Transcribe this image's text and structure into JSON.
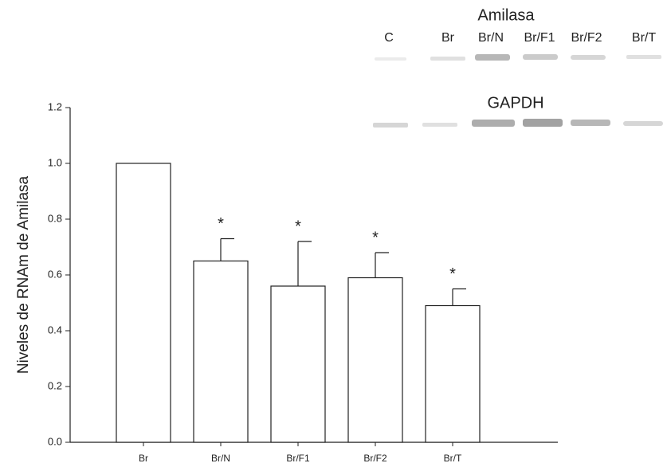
{
  "chart_data": {
    "type": "bar",
    "y_label": "Niveles de RNAm de Amilasa",
    "categories": [
      "Br",
      "Br/N",
      "Br/F1",
      "Br/F2",
      "Br/T"
    ],
    "values": [
      1.0,
      0.65,
      0.56,
      0.59,
      0.49
    ],
    "errors": [
      null,
      0.08,
      0.16,
      0.09,
      0.06
    ],
    "annotations": [
      null,
      "*",
      "*",
      "*",
      "*"
    ],
    "color": "#ffffff",
    "ylim": [
      0,
      1.2
    ],
    "yticks": [
      {
        "value": 0,
        "label": "0.0"
      },
      0.2,
      0.4,
      0.6,
      0.8,
      {
        "value": 1,
        "label": "1.0"
      },
      1.2
    ]
  },
  "blot": {
    "title": "Amilasa",
    "lanes": [
      "C",
      "Br",
      "Br/N",
      "Br/F1",
      "Br/F2",
      "Br/T"
    ],
    "loading_control": "GAPDH"
  }
}
